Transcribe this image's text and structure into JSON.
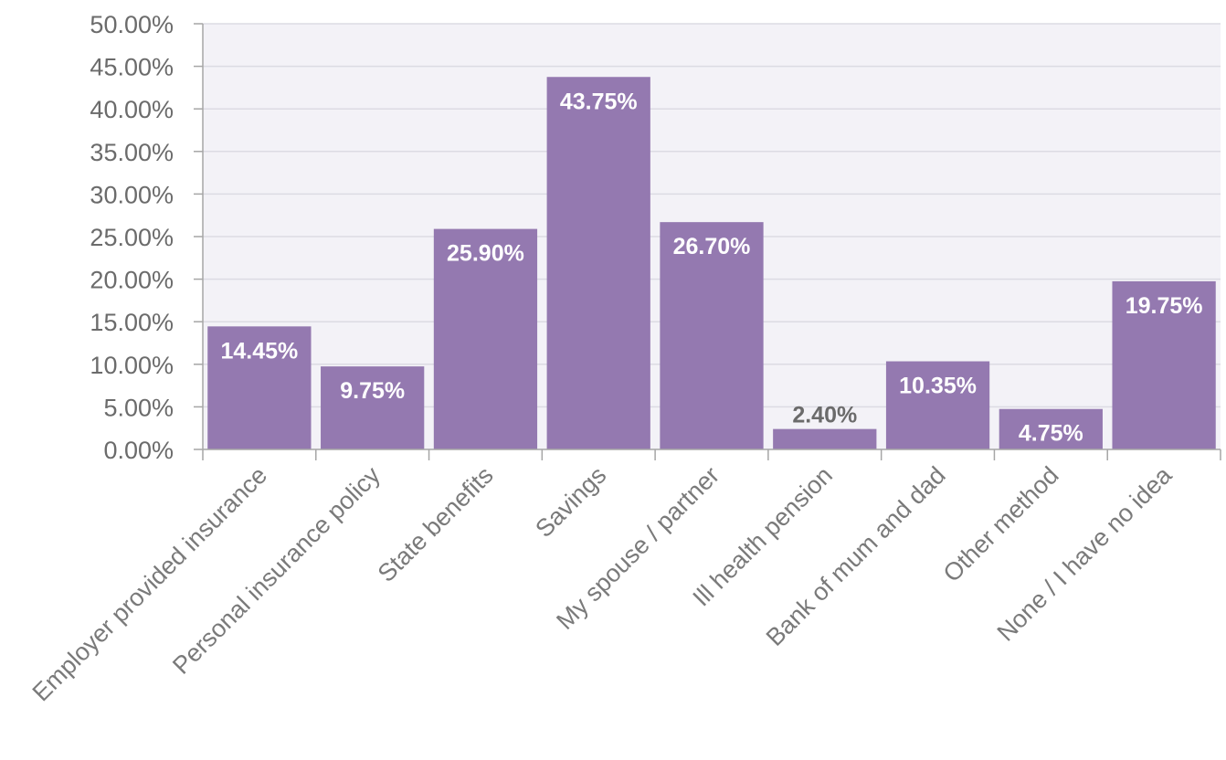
{
  "chart_data": {
    "type": "bar",
    "categories": [
      "Employer provided insurance",
      "Personal insurance policy",
      "State benefits",
      "Savings",
      "My spouse / partner",
      "Ill health pension",
      "Bank of mum and dad",
      "Other method",
      "None / I have no idea"
    ],
    "values": [
      14.45,
      9.75,
      25.9,
      43.75,
      26.7,
      2.4,
      10.35,
      4.75,
      19.75
    ],
    "data_labels": [
      "14.45%",
      "9.75%",
      "25.90%",
      "43.75%",
      "26.70%",
      "2.40%",
      "10.35%",
      "4.75%",
      "19.75%"
    ],
    "y_ticks": [
      "0.00%",
      "5.00%",
      "10.00%",
      "15.00%",
      "20.00%",
      "25.00%",
      "30.00%",
      "35.00%",
      "40.00%",
      "45.00%",
      "50.00%"
    ],
    "ylim": [
      0,
      50
    ],
    "title": "",
    "xlabel": "",
    "ylabel": "",
    "grid": true,
    "legend": "none",
    "colors": {
      "bar": "#9479b0",
      "plot_background": "#f3f2f7",
      "gridline": "#dcdbe3",
      "axis": "#a6a6a6",
      "label_inside": "#ffffff",
      "label_outside": "#6b6b6b",
      "tick_text": "#6b6b6b"
    }
  }
}
